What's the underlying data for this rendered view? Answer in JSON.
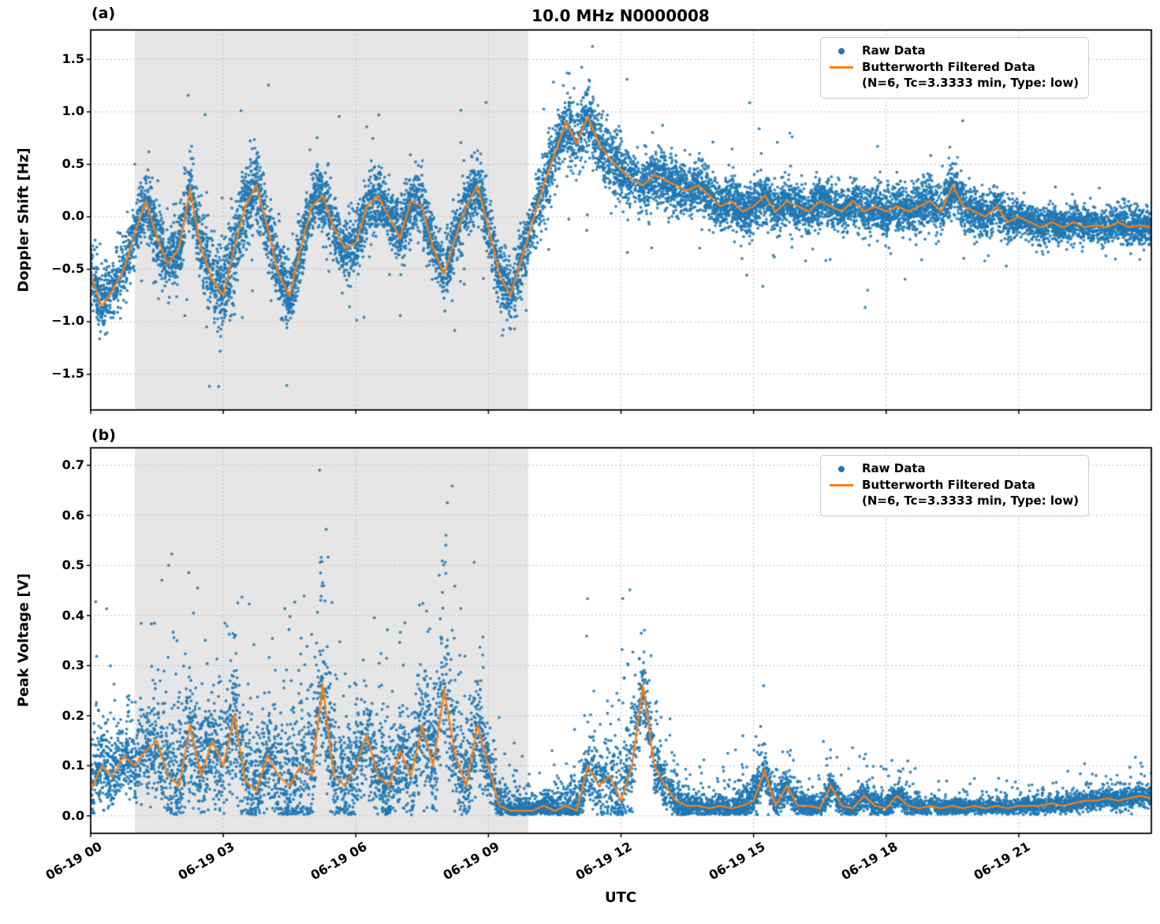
{
  "figure": {
    "title": "10.0 MHz N0000008",
    "panel_a_tag": "(a)",
    "panel_b_tag": "(b)",
    "xlabel": "UTC",
    "legend": {
      "raw_label": "Raw Data",
      "filtered_label": "Butterworth Filtered Data",
      "filtered_sublabel": "(N=6, Tc=3.3333 min, Type: low)"
    },
    "colors": {
      "raw": "#1f77b4",
      "filtered": "#ff7f0e",
      "shade": "#e6e6e6",
      "grid": "#bbbbbb",
      "spine": "#000000"
    },
    "shade_region_hours": [
      1.0,
      9.9
    ]
  },
  "axes": {
    "x": {
      "label": "UTC",
      "lim": [
        0,
        24
      ],
      "ticks": [
        0,
        3,
        6,
        9,
        12,
        15,
        18,
        21
      ],
      "tick_labels": [
        "06-19 00",
        "06-19 03",
        "06-19 06",
        "06-19 09",
        "06-19 12",
        "06-19 15",
        "06-19 18",
        "06-19 21"
      ]
    },
    "panel_a": {
      "ylabel": "Doppler Shift [Hz]",
      "ylim": [
        -1.84,
        1.78
      ],
      "yticks": [
        1.5,
        1.0,
        0.5,
        0.0,
        -0.5,
        -1.0,
        -1.5
      ],
      "ytick_labels": [
        "1.5",
        "1.0",
        "0.5",
        "0.0",
        "−0.5",
        "−1.0",
        "−1.5"
      ]
    },
    "panel_b": {
      "ylabel": "Peak Voltage [V]",
      "ylim": [
        -0.035,
        0.735
      ],
      "yticks": [
        0.7,
        0.6,
        0.5,
        0.4,
        0.3,
        0.2,
        0.1,
        0.0
      ],
      "ytick_labels": [
        "0.7",
        "0.6",
        "0.5",
        "0.4",
        "0.3",
        "0.2",
        "0.1",
        "0.0"
      ]
    }
  },
  "chart_data": [
    {
      "type": "scatter",
      "panel": "(a)",
      "title": "10.0 MHz N0000008",
      "xlabel": "UTC",
      "ylabel": "Doppler Shift [Hz]",
      "xlim": [
        0,
        24
      ],
      "ylim": [
        -1.84,
        1.78
      ],
      "x_unit": "hours after 06-19 00:00 UTC",
      "x_step_hours": 0.25,
      "shaded_x_region_hours": [
        1.0,
        9.9
      ],
      "grid": true,
      "legend_position": "upper right",
      "series": [
        {
          "name": "Butterworth Filtered Data (N=6, Tc=3.3333 min, Type: low)",
          "type": "line",
          "color": "#ff7f0e",
          "values": [
            -0.55,
            -0.85,
            -0.7,
            -0.5,
            -0.15,
            0.15,
            -0.2,
            -0.45,
            -0.3,
            0.25,
            -0.3,
            -0.6,
            -0.75,
            -0.3,
            0.1,
            0.3,
            -0.1,
            -0.55,
            -0.75,
            -0.3,
            0.1,
            0.2,
            -0.1,
            -0.3,
            -0.25,
            0.1,
            0.2,
            0.0,
            -0.2,
            0.15,
            0.1,
            -0.3,
            -0.55,
            -0.2,
            0.1,
            0.3,
            -0.1,
            -0.55,
            -0.75,
            -0.4,
            -0.05,
            0.3,
            0.6,
            0.9,
            0.7,
            0.95,
            0.7,
            0.55,
            0.45,
            0.35,
            0.3,
            0.4,
            0.35,
            0.3,
            0.25,
            0.3,
            0.2,
            0.1,
            0.15,
            0.05,
            0.1,
            0.2,
            0.05,
            0.15,
            0.1,
            0.05,
            0.15,
            0.1,
            0.05,
            0.15,
            0.05,
            0.1,
            0.05,
            0.1,
            0.05,
            0.1,
            0.15,
            0.05,
            0.3,
            0.1,
            0.05,
            0.0,
            0.1,
            -0.05,
            0.0,
            -0.05,
            -0.1,
            -0.05,
            -0.1,
            -0.05,
            -0.1,
            -0.08,
            -0.1,
            -0.05,
            -0.1,
            -0.08,
            -0.1
          ]
        },
        {
          "name": "Raw Data",
          "type": "scatter",
          "color": "#1f77b4",
          "description": "dense high-cadence samples scattered about the filtered curve",
          "band_halfwidth_hourly": [
            0.3,
            0.3,
            0.32,
            0.45,
            0.35,
            0.3,
            0.3,
            0.3,
            0.32,
            0.3,
            0.3,
            0.35,
            0.28,
            0.25,
            0.22,
            0.22,
            0.22,
            0.2,
            0.22,
            0.22,
            0.2,
            0.18,
            0.16,
            0.16,
            0.18
          ],
          "extremes": {
            "max": 1.62,
            "max_at_hour": 10.4,
            "min": -1.7,
            "min_at_hour": 3.2
          }
        }
      ]
    },
    {
      "type": "scatter",
      "panel": "(b)",
      "title": "10.0 MHz N0000008",
      "xlabel": "UTC",
      "ylabel": "Peak Voltage [V]",
      "xlim": [
        0,
        24
      ],
      "ylim": [
        -0.035,
        0.735
      ],
      "x_unit": "hours after 06-19 00:00 UTC",
      "x_step_hours": 0.25,
      "shaded_x_region_hours": [
        1.0,
        9.9
      ],
      "grid": true,
      "legend_position": "upper right",
      "series": [
        {
          "name": "Butterworth Filtered Data (N=6, Tc=3.3333 min, Type: low)",
          "type": "line",
          "color": "#ff7f0e",
          "values": [
            0.05,
            0.1,
            0.08,
            0.12,
            0.1,
            0.13,
            0.15,
            0.08,
            0.06,
            0.18,
            0.08,
            0.15,
            0.1,
            0.2,
            0.07,
            0.05,
            0.12,
            0.08,
            0.06,
            0.1,
            0.08,
            0.26,
            0.08,
            0.06,
            0.1,
            0.16,
            0.08,
            0.06,
            0.13,
            0.08,
            0.18,
            0.1,
            0.25,
            0.12,
            0.06,
            0.18,
            0.1,
            0.02,
            0.01,
            0.01,
            0.01,
            0.02,
            0.01,
            0.02,
            0.01,
            0.1,
            0.06,
            0.08,
            0.03,
            0.1,
            0.26,
            0.1,
            0.06,
            0.03,
            0.02,
            0.02,
            0.015,
            0.02,
            0.015,
            0.02,
            0.03,
            0.09,
            0.02,
            0.06,
            0.02,
            0.02,
            0.015,
            0.06,
            0.02,
            0.015,
            0.04,
            0.02,
            0.015,
            0.04,
            0.02,
            0.015,
            0.02,
            0.015,
            0.02,
            0.015,
            0.02,
            0.015,
            0.02,
            0.015,
            0.02,
            0.02,
            0.02,
            0.025,
            0.02,
            0.025,
            0.03,
            0.03,
            0.035,
            0.03,
            0.035,
            0.04,
            0.035
          ]
        },
        {
          "name": "Raw Data",
          "type": "scatter",
          "color": "#1f77b4",
          "description": "dense high-cadence samples scattered about the filtered curve, skewed upward",
          "band_halfwidth_hourly": [
            0.08,
            0.09,
            0.13,
            0.13,
            0.1,
            0.18,
            0.1,
            0.1,
            0.15,
            0.08,
            0.015,
            0.06,
            0.12,
            0.05,
            0.02,
            0.05,
            0.03,
            0.03,
            0.03,
            0.02,
            0.015,
            0.015,
            0.02,
            0.02,
            0.025
          ],
          "extremes": {
            "max": 0.7,
            "max_at_hour": 5.15,
            "min": 0.0,
            "min_at_hour": 9.8
          }
        }
      ]
    }
  ]
}
